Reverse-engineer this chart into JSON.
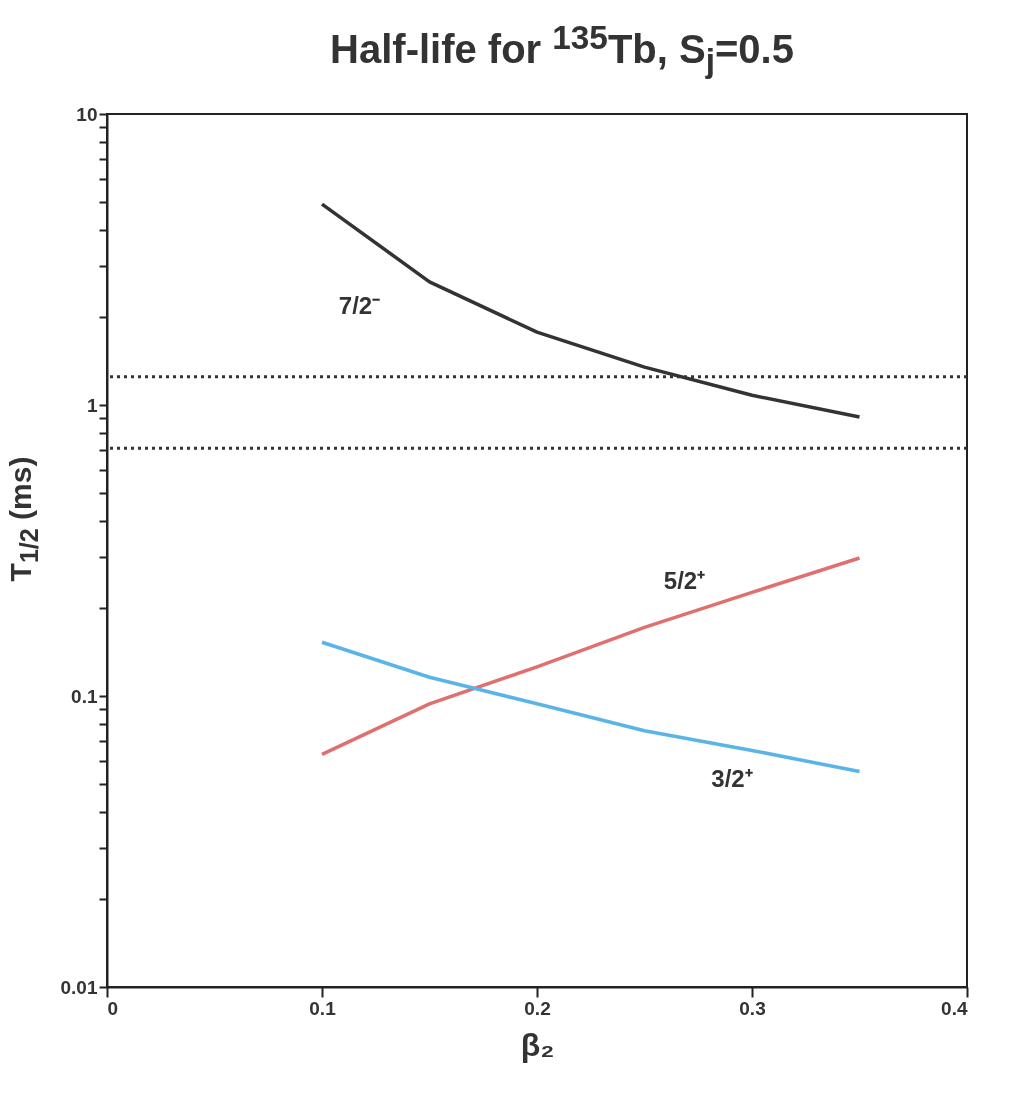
{
  "chart_data": {
    "type": "line",
    "title": "Half-life for $^{135}$Tb, S$_{j}$=0.5",
    "xlabel": "β₂",
    "ylabel": "T$_{1/2}$ (ms)",
    "x": [
      0.1,
      0.15,
      0.2,
      0.25,
      0.3,
      0.35
    ],
    "series": [
      {
        "name": "7/2⁻",
        "color": "#333333",
        "values": [
          4.9,
          2.65,
          1.78,
          1.35,
          1.08,
          0.91
        ]
      },
      {
        "name": "5/2⁺",
        "color": "#e07070",
        "values": [
          0.063,
          0.094,
          0.126,
          0.172,
          0.227,
          0.298
        ]
      },
      {
        "name": "3/2⁺",
        "color": "#5ab4e8",
        "values": [
          0.153,
          0.116,
          0.094,
          0.076,
          0.065,
          0.055
        ]
      }
    ],
    "log": "y",
    "xlim": [
      0,
      0.4
    ],
    "xticks": [
      0,
      0.1,
      0.2,
      0.3,
      0.4
    ],
    "ylim": [
      0.01,
      10
    ],
    "yticks": [
      0.01,
      {
        "value": 0.02,
        "label": null
      },
      {
        "value": 0.03,
        "label": null
      },
      {
        "value": 0.04,
        "label": null
      },
      {
        "value": 0.05,
        "label": null
      },
      {
        "value": 0.06,
        "label": null
      },
      {
        "value": 0.07,
        "label": null
      },
      {
        "value": 0.08,
        "label": null
      },
      {
        "value": 0.09,
        "label": null
      },
      0.1,
      {
        "value": 0.2,
        "label": null
      },
      {
        "value": 0.3,
        "label": null
      },
      {
        "value": 0.4,
        "label": null
      },
      {
        "value": 0.5,
        "label": null
      },
      {
        "value": 0.6,
        "label": null
      },
      {
        "value": 0.7,
        "label": null
      },
      {
        "value": 0.8,
        "label": null
      },
      {
        "value": 0.9,
        "label": null
      },
      1,
      {
        "value": 2,
        "label": null
      },
      {
        "value": 3,
        "label": null
      },
      {
        "value": 4,
        "label": null
      },
      {
        "value": 5,
        "label": null
      },
      {
        "value": 6,
        "label": null
      },
      {
        "value": 7,
        "label": null
      },
      {
        "value": 8,
        "label": null
      },
      {
        "value": 9,
        "label": null
      },
      10
    ],
    "ref_lines": [
      {
        "axis": "y",
        "value": 1.25,
        "color": "#333333",
        "line_style": "dotted"
      },
      {
        "axis": "y",
        "value": 0.71,
        "color": "#333333",
        "line_style": "dotted"
      }
    ],
    "grid": false,
    "legend": false
  }
}
